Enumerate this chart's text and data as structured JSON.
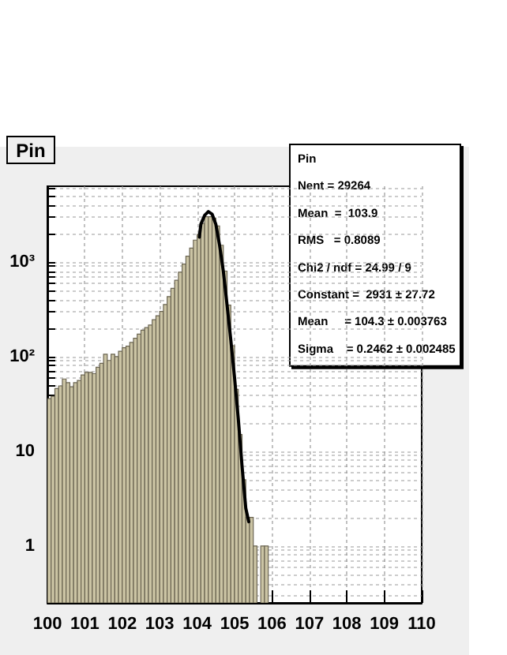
{
  "chart_data": {
    "type": "histogram",
    "title": "Pin",
    "log": "y",
    "grid": true,
    "color": "#cbc4a4",
    "bins": [
      100,
      100.1,
      100.2,
      100.3,
      100.4,
      100.5,
      100.6,
      100.7,
      100.8,
      100.9,
      101,
      101.1,
      101.2,
      101.3,
      101.4,
      101.5,
      101.6,
      101.7,
      101.8,
      101.9,
      102,
      102.1,
      102.2,
      102.3,
      102.4,
      102.5,
      102.6,
      102.7,
      102.8,
      102.9,
      103,
      103.1,
      103.2,
      103.3,
      103.4,
      103.5,
      103.6,
      103.7,
      103.8,
      103.9,
      104,
      104.1,
      104.2,
      104.3,
      104.4,
      104.5,
      104.6,
      104.7,
      104.8,
      104.9,
      105,
      105.1,
      105.2,
      105.3,
      105.4,
      105.5,
      105.6,
      105.7,
      105.8,
      105.9
    ],
    "values": [
      36,
      38,
      46,
      49,
      58,
      53,
      48,
      53,
      56,
      64,
      68,
      68,
      66,
      77,
      85,
      106,
      91,
      106,
      100,
      114,
      124,
      129,
      141,
      156,
      173,
      190,
      202,
      215,
      245,
      270,
      300,
      355,
      430,
      525,
      640,
      780,
      950,
      1150,
      1400,
      1700,
      1950,
      2550,
      3000,
      3000,
      2900,
      2400,
      1500,
      800,
      350,
      130,
      45,
      15,
      5,
      2,
      2,
      1,
      null,
      1,
      1
    ],
    "series": [
      {
        "type": "line",
        "color": "#000000",
        "x": [
          104.06,
          104.1,
          104.2,
          104.3,
          104.4,
          104.5,
          104.6,
          104.7,
          104.8,
          104.9,
          105,
          105.1,
          105.2,
          105.3,
          105.38
        ],
        "values": [
          1830,
          2500,
          3100,
          3400,
          3200,
          2500,
          1500,
          800,
          350,
          150,
          60,
          22,
          7,
          2.5,
          1.8
        ]
      }
    ],
    "marker": "none",
    "xlim": [
      100,
      110
    ],
    "xticks": [
      100,
      101,
      102,
      103,
      104,
      105,
      106,
      107,
      108,
      109,
      110
    ],
    "ylim": [
      0.25,
      6300
    ],
    "yticks": [
      {
        "value": 0.3,
        "label": null
      },
      {
        "value": 0.4,
        "label": null
      },
      {
        "value": 0.5,
        "label": null
      },
      {
        "value": 0.6,
        "label": null
      },
      {
        "value": 0.7,
        "label": null
      },
      {
        "value": 0.8,
        "label": null
      },
      {
        "value": 0.9,
        "label": null
      },
      1,
      {
        "value": 2,
        "label": null
      },
      {
        "value": 3,
        "label": null
      },
      {
        "value": 4,
        "label": null
      },
      {
        "value": 5,
        "label": null
      },
      {
        "value": 6,
        "label": null
      },
      {
        "value": 7,
        "label": null
      },
      {
        "value": 8,
        "label": null
      },
      {
        "value": 9,
        "label": null
      },
      10,
      {
        "value": 20,
        "label": null
      },
      {
        "value": 30,
        "label": null
      },
      {
        "value": 40,
        "label": null
      },
      {
        "value": 50,
        "label": null
      },
      {
        "value": 60,
        "label": null
      },
      {
        "value": 70,
        "label": null
      },
      {
        "value": 80,
        "label": null
      },
      {
        "value": 90,
        "label": null
      },
      {
        "value": 100,
        "label": "10²"
      },
      {
        "value": 200,
        "label": null
      },
      {
        "value": 300,
        "label": null
      },
      {
        "value": 400,
        "label": null
      },
      {
        "value": 500,
        "label": null
      },
      {
        "value": 600,
        "label": null
      },
      {
        "value": 700,
        "label": null
      },
      {
        "value": 800,
        "label": null
      },
      {
        "value": 900,
        "label": null
      },
      {
        "value": 1000,
        "label": "10³"
      },
      {
        "value": 2000,
        "label": null
      },
      {
        "value": 3000,
        "label": null
      },
      {
        "value": 4000,
        "label": null
      },
      {
        "value": 5000,
        "label": null
      },
      {
        "value": 6000,
        "label": null
      }
    ],
    "annotations": [
      "Pin",
      "Nent = 29264",
      "Mean  =  103.9",
      "RMS   = 0.8089",
      "Chi2 / ndf = 24.99 / 9",
      "Constant =  2931 ± 27.72",
      "Mean     = 104.3 ± 0.003763",
      "Sigma    = 0.2462 ± 0.002485"
    ]
  }
}
